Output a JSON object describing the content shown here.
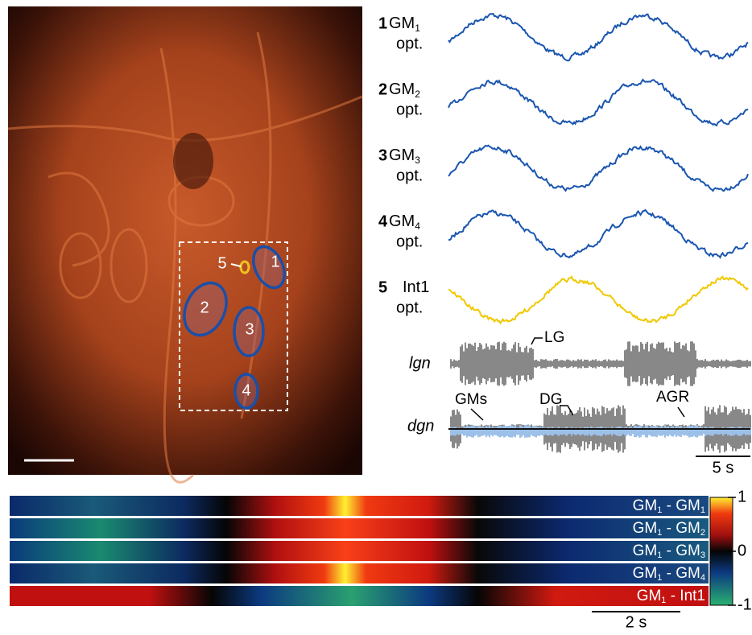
{
  "image": {
    "roi_labels": [
      "1",
      "2",
      "3",
      "4",
      "5"
    ]
  },
  "traces": [
    {
      "index": "1",
      "label": "GM",
      "sub": "1",
      "unit": "opt."
    },
    {
      "index": "2",
      "label": "GM",
      "sub": "2",
      "unit": "opt."
    },
    {
      "index": "3",
      "label": "GM",
      "sub": "3",
      "unit": "opt."
    },
    {
      "index": "4",
      "label": "GM",
      "sub": "4",
      "unit": "opt."
    },
    {
      "index": "5",
      "label": "Int1",
      "unit": "opt."
    }
  ],
  "recordings": {
    "lgn": {
      "name": "lgn",
      "annotations": [
        "LG"
      ]
    },
    "dgn": {
      "name": "dgn",
      "annotations": [
        "GMs",
        "DG",
        "AGR"
      ]
    },
    "scale": "5 s"
  },
  "heatmap": {
    "rows": [
      {
        "a": "GM",
        "asub": "1",
        "sep": " - ",
        "b": "GM",
        "bsub": "1"
      },
      {
        "a": "GM",
        "asub": "1",
        "sep": " - ",
        "b": "GM",
        "bsub": "2"
      },
      {
        "a": "GM",
        "asub": "1",
        "sep": " - ",
        "b": "GM",
        "bsub": "3"
      },
      {
        "a": "GM",
        "asub": "1",
        "sep": " - ",
        "b": "GM",
        "bsub": "4"
      },
      {
        "a": "GM",
        "asub": "1",
        "sep": " - Int1"
      }
    ],
    "colorbar": {
      "lim": [
        -1,
        1
      ],
      "ticks": [
        1,
        0,
        -1
      ]
    },
    "scale": "2 s"
  }
}
